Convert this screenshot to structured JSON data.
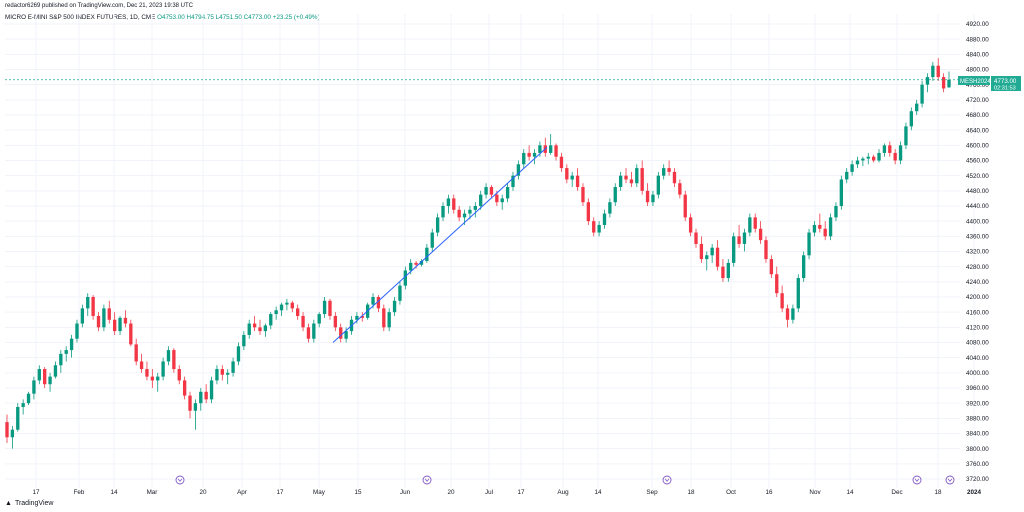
{
  "header": {
    "text": "redactor6269 published on TradingView.com, Dec 21, 2023 19:38 UTC"
  },
  "legend": {
    "symbol": "MICRO E-MINI S&P 500 INDEX FUTURES, 1D, CME",
    "open": "O4753.00",
    "high": "H4794.75",
    "low": "L4751.50",
    "close": "C4773.00",
    "change": "+23.25 (+0.49%)"
  },
  "badges": {
    "ticker": "MESH2024",
    "price": "4773.00",
    "countdown": "02:31:53"
  },
  "footer": {
    "brand": "TradingView"
  },
  "colors": {
    "up": "#089981",
    "down": "#f23645",
    "grid": "#f0f3fa",
    "trend": "#2962ff",
    "event": "#7e57c2",
    "priceLine": "#22ab94"
  },
  "chart_data": {
    "type": "candlestick",
    "title": "MICRO E-MINI S&P 500 INDEX FUTURES, 1D, CME",
    "ylim": [
      3700,
      4940
    ],
    "yticks": [
      4920.0,
      4880.0,
      4840.0,
      4800.0,
      4760.0,
      4720.0,
      4680.0,
      4640.0,
      4600.0,
      4560.0,
      4520.0,
      4480.0,
      4440.0,
      4400.0,
      4360.0,
      4320.0,
      4280.0,
      4240.0,
      4200.0,
      4160.0,
      4120.0,
      4080.0,
      4040.0,
      4000.0,
      3960.0,
      3920.0,
      3880.0,
      3840.0,
      3800.0,
      3760.0,
      3720.0
    ],
    "xticks": [
      "17",
      "Feb",
      "14",
      "Mar",
      "20",
      "Apr",
      "17",
      "May",
      "15",
      "Jun",
      "20",
      "Jul",
      "17",
      "Aug",
      "14",
      "Sep",
      "18",
      "Oct",
      "16",
      "Nov",
      "14",
      "Dec",
      "18",
      "2024"
    ],
    "last_price": 4773.0,
    "trend_line": {
      "from": [
        3,
        4080
      ],
      "to": [
        5,
        4595
      ]
    },
    "candles_ohlc": [
      [
        3870,
        3890,
        3815,
        3830
      ],
      [
        3830,
        3860,
        3800,
        3850
      ],
      [
        3850,
        3920,
        3845,
        3910
      ],
      [
        3910,
        3930,
        3890,
        3920
      ],
      [
        3920,
        3950,
        3915,
        3945
      ],
      [
        3945,
        3990,
        3930,
        3980
      ],
      [
        3980,
        4020,
        3970,
        4010
      ],
      [
        4010,
        4015,
        3960,
        3970
      ],
      [
        3970,
        4000,
        3950,
        3990
      ],
      [
        3990,
        4030,
        3985,
        4020
      ],
      [
        4020,
        4060,
        4000,
        4050
      ],
      [
        4050,
        4070,
        4030,
        4060
      ],
      [
        4060,
        4100,
        4040,
        4090
      ],
      [
        4090,
        4140,
        4080,
        4130
      ],
      [
        4130,
        4180,
        4120,
        4170
      ],
      [
        4170,
        4210,
        4150,
        4200
      ],
      [
        4200,
        4205,
        4140,
        4150
      ],
      [
        4150,
        4160,
        4110,
        4120
      ],
      [
        4120,
        4180,
        4110,
        4170
      ],
      [
        4170,
        4190,
        4130,
        4140
      ],
      [
        4140,
        4160,
        4100,
        4110
      ],
      [
        4110,
        4150,
        4100,
        4145
      ],
      [
        4145,
        4165,
        4120,
        4130
      ],
      [
        4130,
        4140,
        4070,
        4075
      ],
      [
        4075,
        4090,
        4020,
        4030
      ],
      [
        4030,
        4050,
        4000,
        4010
      ],
      [
        4010,
        4030,
        3980,
        3990
      ],
      [
        3990,
        4010,
        3960,
        3980
      ],
      [
        3980,
        4000,
        3950,
        3990
      ],
      [
        3990,
        4040,
        3980,
        4030
      ],
      [
        4030,
        4070,
        4020,
        4060
      ],
      [
        4060,
        4065,
        4000,
        4010
      ],
      [
        4010,
        4020,
        3970,
        3980
      ],
      [
        3980,
        3990,
        3930,
        3940
      ],
      [
        3940,
        3950,
        3880,
        3900
      ],
      [
        3900,
        3930,
        3850,
        3920
      ],
      [
        3920,
        3960,
        3900,
        3950
      ],
      [
        3950,
        3970,
        3920,
        3930
      ],
      [
        3930,
        3990,
        3920,
        3980
      ],
      [
        3980,
        4020,
        3970,
        4010
      ],
      [
        4010,
        4020,
        3980,
        3995
      ],
      [
        3995,
        4010,
        3970,
        4000
      ],
      [
        4000,
        4040,
        3990,
        4030
      ],
      [
        4030,
        4080,
        4020,
        4070
      ],
      [
        4070,
        4110,
        4060,
        4100
      ],
      [
        4100,
        4140,
        4090,
        4130
      ],
      [
        4130,
        4150,
        4110,
        4120
      ],
      [
        4120,
        4140,
        4100,
        4110
      ],
      [
        4110,
        4130,
        4095,
        4125
      ],
      [
        4125,
        4160,
        4115,
        4155
      ],
      [
        4155,
        4175,
        4140,
        4165
      ],
      [
        4165,
        4185,
        4150,
        4180
      ],
      [
        4180,
        4195,
        4165,
        4185
      ],
      [
        4185,
        4190,
        4160,
        4170
      ],
      [
        4170,
        4180,
        4140,
        4150
      ],
      [
        4150,
        4160,
        4110,
        4120
      ],
      [
        4120,
        4130,
        4080,
        4090
      ],
      [
        4090,
        4140,
        4080,
        4130
      ],
      [
        4130,
        4160,
        4120,
        4155
      ],
      [
        4155,
        4200,
        4145,
        4190
      ],
      [
        4190,
        4195,
        4140,
        4150
      ],
      [
        4150,
        4160,
        4110,
        4120
      ],
      [
        4120,
        4130,
        4080,
        4090
      ],
      [
        4090,
        4120,
        4080,
        4110
      ],
      [
        4110,
        4150,
        4100,
        4140
      ],
      [
        4140,
        4160,
        4130,
        4150
      ],
      [
        4150,
        4160,
        4135,
        4145
      ],
      [
        4145,
        4185,
        4140,
        4180
      ],
      [
        4180,
        4210,
        4170,
        4200
      ],
      [
        4200,
        4205,
        4160,
        4170
      ],
      [
        4170,
        4180,
        4110,
        4120
      ],
      [
        4120,
        4170,
        4110,
        4160
      ],
      [
        4160,
        4200,
        4150,
        4190
      ],
      [
        4190,
        4240,
        4180,
        4230
      ],
      [
        4230,
        4280,
        4220,
        4270
      ],
      [
        4270,
        4300,
        4260,
        4290
      ],
      [
        4290,
        4295,
        4275,
        4285
      ],
      [
        4285,
        4300,
        4280,
        4295
      ],
      [
        4295,
        4340,
        4290,
        4330
      ],
      [
        4330,
        4380,
        4320,
        4370
      ],
      [
        4370,
        4420,
        4360,
        4410
      ],
      [
        4410,
        4450,
        4400,
        4440
      ],
      [
        4440,
        4470,
        4420,
        4460
      ],
      [
        4460,
        4470,
        4420,
        4430
      ],
      [
        4430,
        4440,
        4400,
        4410
      ],
      [
        4410,
        4430,
        4390,
        4420
      ],
      [
        4420,
        4440,
        4405,
        4430
      ],
      [
        4430,
        4450,
        4410,
        4440
      ],
      [
        4440,
        4480,
        4430,
        4470
      ],
      [
        4470,
        4500,
        4460,
        4490
      ],
      [
        4490,
        4495,
        4460,
        4470
      ],
      [
        4470,
        4480,
        4440,
        4450
      ],
      [
        4450,
        4470,
        4430,
        4460
      ],
      [
        4460,
        4500,
        4450,
        4490
      ],
      [
        4490,
        4530,
        4480,
        4520
      ],
      [
        4520,
        4560,
        4510,
        4550
      ],
      [
        4550,
        4590,
        4540,
        4580
      ],
      [
        4580,
        4600,
        4560,
        4570
      ],
      [
        4570,
        4590,
        4550,
        4580
      ],
      [
        4580,
        4610,
        4570,
        4600
      ],
      [
        4600,
        4620,
        4570,
        4580
      ],
      [
        4580,
        4630,
        4575,
        4600
      ],
      [
        4600,
        4605,
        4560,
        4570
      ],
      [
        4570,
        4580,
        4530,
        4540
      ],
      [
        4540,
        4550,
        4500,
        4510
      ],
      [
        4510,
        4530,
        4490,
        4520
      ],
      [
        4520,
        4540,
        4480,
        4490
      ],
      [
        4490,
        4500,
        4440,
        4450
      ],
      [
        4450,
        4460,
        4390,
        4400
      ],
      [
        4400,
        4410,
        4360,
        4370
      ],
      [
        4370,
        4400,
        4360,
        4390
      ],
      [
        4390,
        4430,
        4380,
        4420
      ],
      [
        4420,
        4460,
        4410,
        4450
      ],
      [
        4450,
        4500,
        4440,
        4490
      ],
      [
        4490,
        4530,
        4480,
        4520
      ],
      [
        4520,
        4540,
        4500,
        4510
      ],
      [
        4510,
        4530,
        4490,
        4500
      ],
      [
        4500,
        4550,
        4490,
        4540
      ],
      [
        4540,
        4560,
        4470,
        4480
      ],
      [
        4480,
        4500,
        4440,
        4450
      ],
      [
        4450,
        4480,
        4440,
        4470
      ],
      [
        4470,
        4530,
        4460,
        4520
      ],
      [
        4520,
        4550,
        4510,
        4540
      ],
      [
        4540,
        4560,
        4520,
        4530
      ],
      [
        4530,
        4540,
        4490,
        4500
      ],
      [
        4500,
        4510,
        4460,
        4470
      ],
      [
        4470,
        4480,
        4400,
        4410
      ],
      [
        4410,
        4420,
        4360,
        4370
      ],
      [
        4370,
        4380,
        4330,
        4340
      ],
      [
        4340,
        4360,
        4290,
        4300
      ],
      [
        4300,
        4320,
        4270,
        4310
      ],
      [
        4310,
        4340,
        4290,
        4330
      ],
      [
        4330,
        4350,
        4270,
        4280
      ],
      [
        4280,
        4300,
        4240,
        4250
      ],
      [
        4250,
        4300,
        4240,
        4290
      ],
      [
        4290,
        4370,
        4280,
        4360
      ],
      [
        4360,
        4390,
        4330,
        4340
      ],
      [
        4340,
        4380,
        4320,
        4370
      ],
      [
        4370,
        4420,
        4360,
        4410
      ],
      [
        4410,
        4420,
        4370,
        4380
      ],
      [
        4380,
        4400,
        4340,
        4350
      ],
      [
        4350,
        4360,
        4290,
        4300
      ],
      [
        4300,
        4310,
        4250,
        4260
      ],
      [
        4260,
        4280,
        4200,
        4210
      ],
      [
        4210,
        4230,
        4160,
        4170
      ],
      [
        4170,
        4180,
        4120,
        4140
      ],
      [
        4140,
        4180,
        4130,
        4170
      ],
      [
        4170,
        4260,
        4160,
        4250
      ],
      [
        4250,
        4320,
        4240,
        4310
      ],
      [
        4310,
        4380,
        4300,
        4370
      ],
      [
        4370,
        4400,
        4360,
        4390
      ],
      [
        4390,
        4420,
        4370,
        4380
      ],
      [
        4380,
        4400,
        4350,
        4360
      ],
      [
        4360,
        4420,
        4350,
        4410
      ],
      [
        4410,
        4450,
        4400,
        4440
      ],
      [
        4440,
        4520,
        4430,
        4510
      ],
      [
        4510,
        4540,
        4500,
        4530
      ],
      [
        4530,
        4560,
        4520,
        4550
      ],
      [
        4550,
        4570,
        4540,
        4560
      ],
      [
        4560,
        4570,
        4545,
        4565
      ],
      [
        4565,
        4580,
        4550,
        4570
      ],
      [
        4570,
        4575,
        4555,
        4560
      ],
      [
        4560,
        4590,
        4555,
        4580
      ],
      [
        4580,
        4605,
        4570,
        4600
      ],
      [
        4600,
        4610,
        4570,
        4580
      ],
      [
        4580,
        4590,
        4550,
        4560
      ],
      [
        4560,
        4610,
        4550,
        4600
      ],
      [
        4600,
        4660,
        4590,
        4650
      ],
      [
        4650,
        4700,
        4640,
        4690
      ],
      [
        4690,
        4720,
        4680,
        4710
      ],
      [
        4710,
        4770,
        4700,
        4760
      ],
      [
        4760,
        4790,
        4740,
        4780
      ],
      [
        4780,
        4820,
        4770,
        4810
      ],
      [
        4810,
        4830,
        4770,
        4780
      ],
      [
        4780,
        4790,
        4740,
        4750
      ],
      [
        4753,
        4794.75,
        4751.5,
        4773
      ]
    ]
  }
}
